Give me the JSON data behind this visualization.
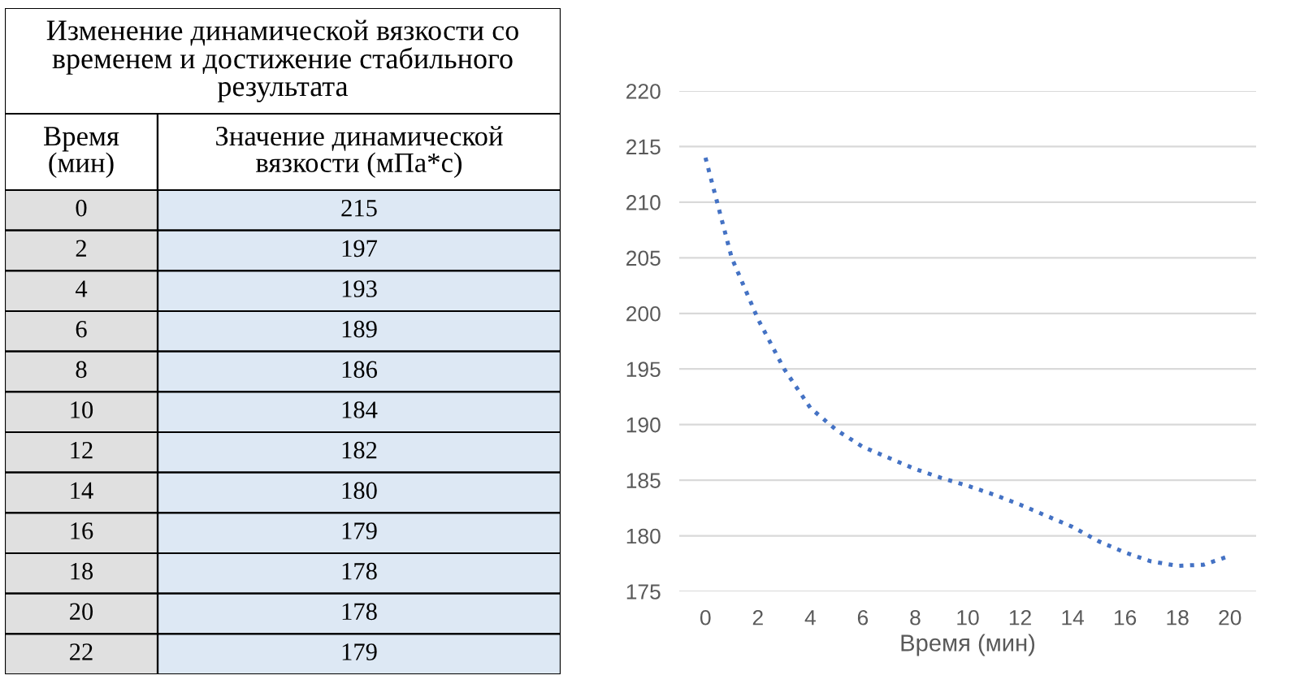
{
  "chart_data": [
    {
      "type": "heatmap",
      "title": "Изменение динамической вязкости со\nвременем и достижение стабильного\nрезультата",
      "ylabel": "Время\n(мин)",
      "categories": [
        "Значение динамической\nвязкости (мПа*с)"
      ],
      "y_categories": [
        "0",
        "2",
        "4",
        "6",
        "8",
        "10",
        "12",
        "14",
        "16",
        "18",
        "20",
        "22"
      ],
      "cells": [
        [
          215
        ],
        [
          197
        ],
        [
          193
        ],
        [
          189
        ],
        [
          186
        ],
        [
          184
        ],
        [
          182
        ],
        [
          180
        ],
        [
          179
        ],
        [
          178
        ],
        [
          178
        ],
        [
          179
        ]
      ],
      "data_labels": true
    },
    {
      "type": "line",
      "xlabel": "Время (мин)",
      "xlim": [
        -1,
        21
      ],
      "xticks": [
        0,
        2,
        4,
        6,
        8,
        10,
        12,
        14,
        16,
        18,
        20
      ],
      "ylim": [
        175,
        220
      ],
      "yticks": [
        175,
        180,
        185,
        190,
        195,
        200,
        205,
        210,
        215,
        220
      ],
      "grid": "y",
      "line_style": "dotted",
      "marker": "none",
      "x": [
        0,
        1,
        2,
        3,
        4,
        5,
        6,
        7,
        8,
        9,
        10,
        11,
        12,
        13,
        14,
        15,
        16,
        17,
        18,
        19,
        20
      ],
      "series": [
        {
          "color": "#4472c4",
          "values": [
            214,
            205,
            199.5,
            195,
            191.5,
            189.5,
            188,
            187,
            186,
            185.2,
            184.5,
            183.7,
            182.8,
            181.8,
            180.8,
            179.5,
            178.5,
            177.7,
            177.3,
            177.4,
            178.2
          ]
        }
      ]
    }
  ]
}
